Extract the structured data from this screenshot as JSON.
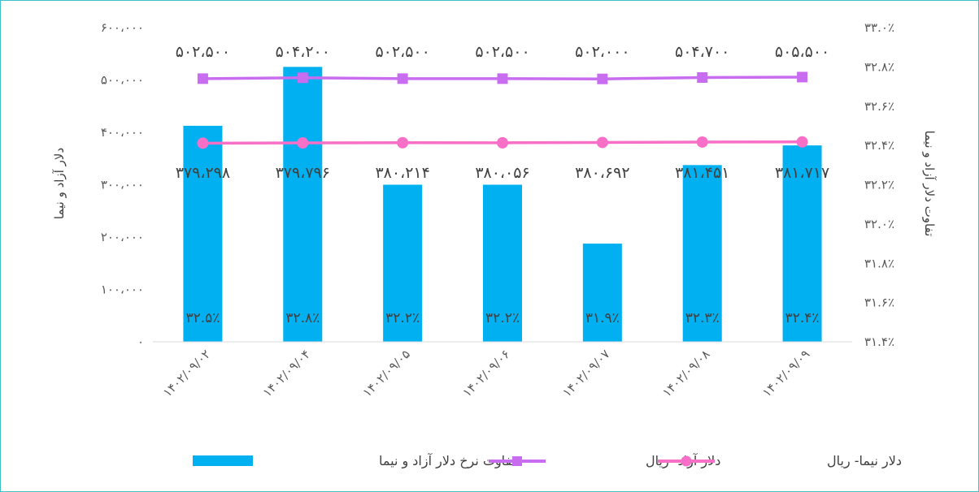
{
  "chart_data": {
    "type": "bar",
    "categories": [
      "۱۴۰۲/۰۹/۰۲",
      "۱۴۰۲/۰۹/۰۴",
      "۱۴۰۲/۰۹/۰۵",
      "۱۴۰۲/۰۹/۰۶",
      "۱۴۰۲/۰۹/۰۷",
      "۱۴۰۲/۰۹/۰۸",
      "۱۴۰۲/۰۹/۰۹"
    ],
    "left_axis": {
      "label": "دلار آزاد و نیما",
      "range": [
        0,
        600000
      ],
      "ticks": [
        0,
        100000,
        200000,
        300000,
        400000,
        500000,
        600000
      ],
      "tick_labels": [
        "۰",
        "۱۰۰،۰۰۰",
        "۲۰۰،۰۰۰",
        "۳۰۰،۰۰۰",
        "۴۰۰،۰۰۰",
        "۵۰۰،۰۰۰",
        "۶۰۰،۰۰۰"
      ]
    },
    "right_axis": {
      "label": "تفاوت دلار آزاد و نیما",
      "range": [
        31.4,
        33.0
      ],
      "ticks": [
        31.4,
        31.6,
        31.8,
        32.0,
        32.2,
        32.4,
        32.6,
        32.8,
        33.0
      ],
      "tick_labels": [
        "۳۱.۴٪",
        "۳۱.۶٪",
        "۳۱.۸٪",
        "۳۲.۰٪",
        "۳۲.۲٪",
        "۳۲.۴٪",
        "۳۲.۶٪",
        "۳۲.۸٪",
        "۳۳.۰٪"
      ]
    },
    "series": [
      {
        "name": "تفاوت نرخ دلار آزاد و نیما",
        "type": "bar",
        "axis": "right",
        "color": "#00b0f0",
        "values": [
          32.5,
          32.8,
          32.2,
          32.2,
          31.9,
          32.3,
          32.4
        ],
        "labels": [
          "۳۲.۵٪",
          "۳۲.۸٪",
          "۳۲.۲٪",
          "۳۲.۲٪",
          "۳۱.۹٪",
          "۳۲.۳٪",
          "۳۲.۴٪"
        ]
      },
      {
        "name": "دلار آزاد- ریال",
        "type": "line",
        "axis": "left",
        "marker": "square",
        "color": "#c86cf0",
        "values": [
          502500,
          504200,
          502500,
          502500,
          502000,
          504700,
          505500
        ],
        "labels": [
          "۵۰۲،۵۰۰",
          "۵۰۴،۲۰۰",
          "۵۰۲،۵۰۰",
          "۵۰۲،۵۰۰",
          "۵۰۲،۰۰۰",
          "۵۰۴،۷۰۰",
          "۵۰۵،۵۰۰"
        ]
      },
      {
        "name": "دلار نیما- ریال",
        "type": "line",
        "axis": "left",
        "marker": "circle",
        "color": "#f76fc7",
        "values": [
          379298,
          379796,
          380214,
          380056,
          380692,
          381451,
          381717
        ],
        "labels": [
          "۳۷۹،۲۹۸",
          "۳۷۹،۷۹۶",
          "۳۸۰،۲۱۴",
          "۳۸۰،۰۵۶",
          "۳۸۰،۶۹۲",
          "۳۸۱،۴۵۱",
          "۳۸۱،۷۱۷"
        ]
      }
    ],
    "legend_position": "bottom",
    "grid": false
  }
}
